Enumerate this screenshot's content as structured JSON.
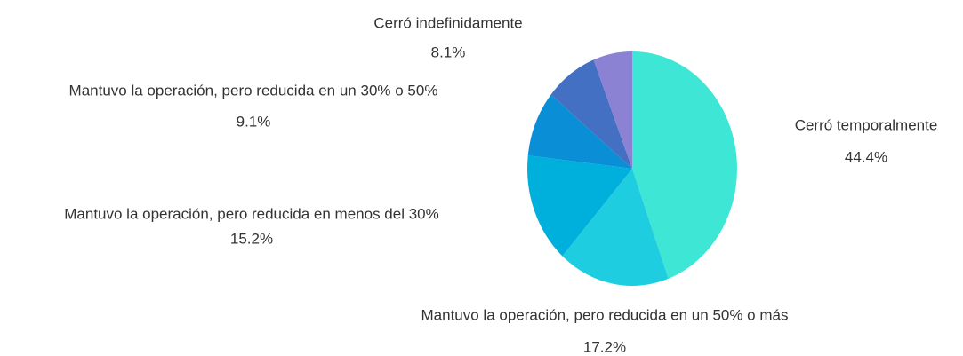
{
  "chart_data": {
    "type": "pie",
    "categories": [
      "Cerró temporalmente",
      "Mantuvo la operación, pero reducida en un 50% o más",
      "Mantuvo la operación, pero reducida en menos del 30%",
      "Mantuvo la operación, pero reducida en un 30% o 50%",
      "Cerró indefinidamente",
      null
    ],
    "values": [
      44.4,
      17.2,
      15.2,
      9.1,
      8.1,
      6.0
    ],
    "value_labels": [
      "44.4%",
      "17.2%",
      "15.2%",
      "9.1%",
      "8.1%",
      null
    ],
    "colors": [
      "#3ee6d6",
      "#1ecde0",
      "#00b0dc",
      "#0a8fd6",
      "#4470c4",
      "#8c82d4"
    ]
  }
}
